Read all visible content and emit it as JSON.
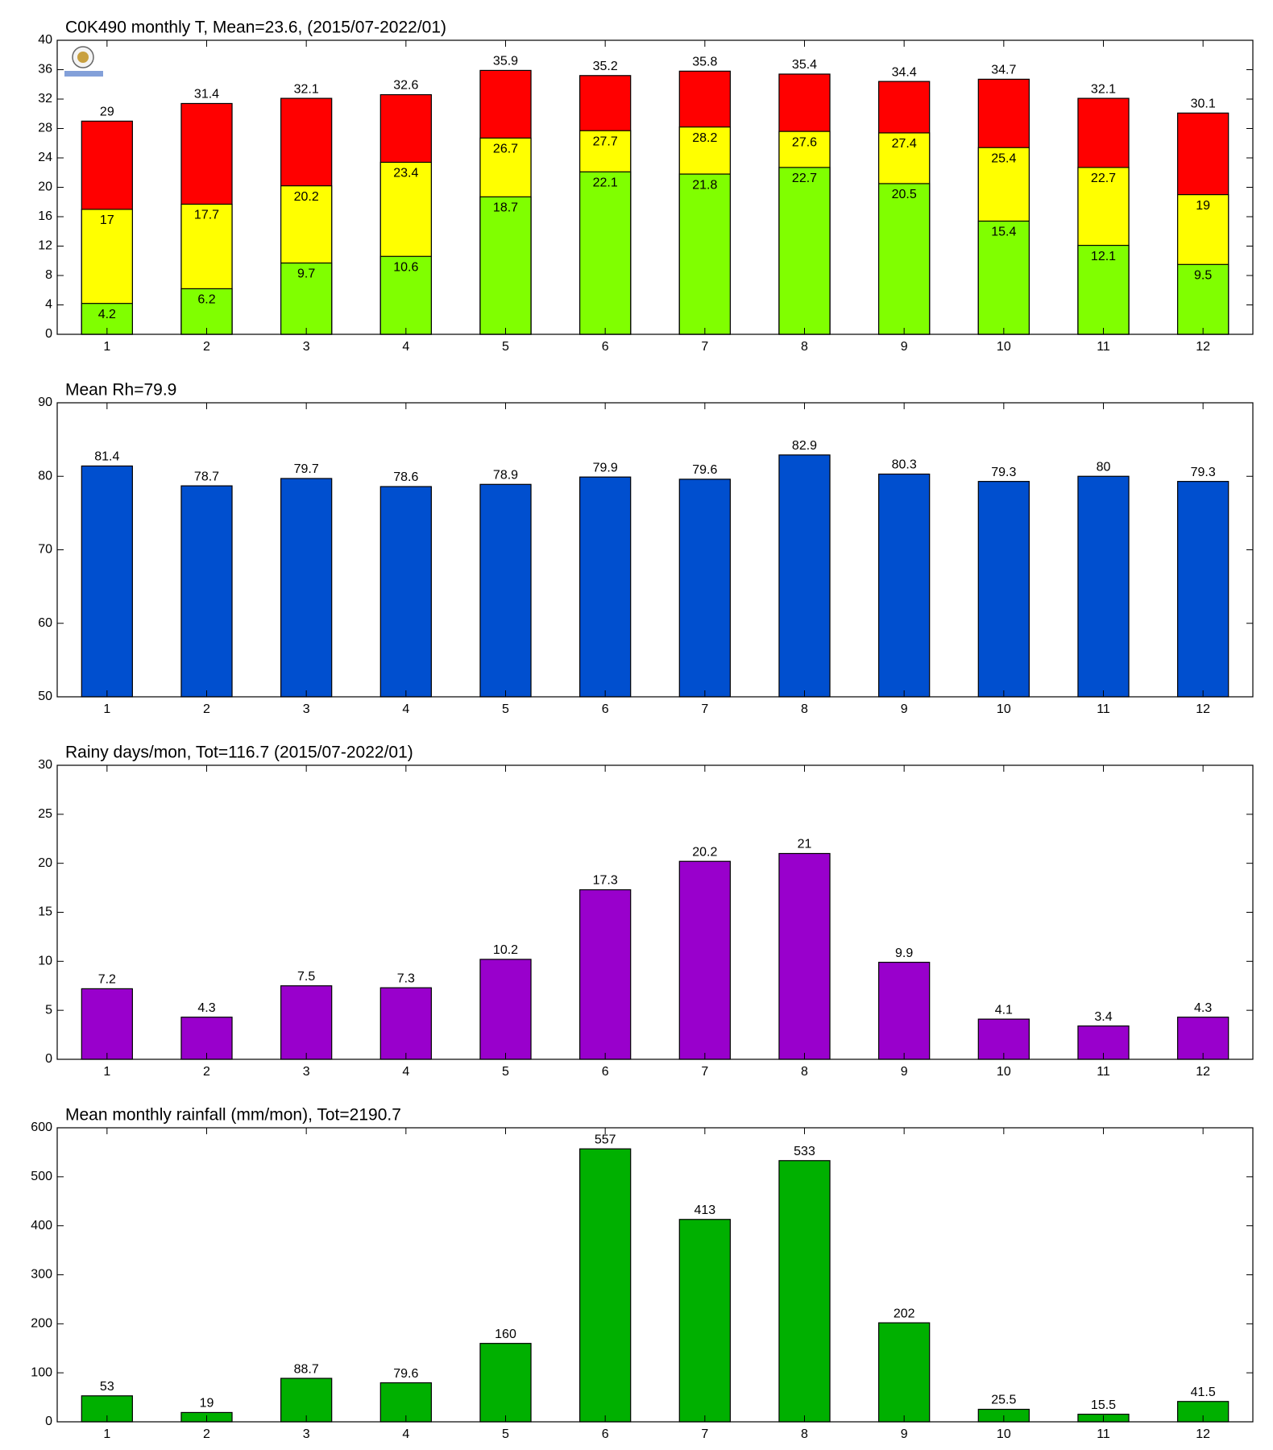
{
  "chart_data": [
    {
      "type": "bar",
      "title": "C0K490 monthly T, Mean=23.6, (2015/07-2022/01)",
      "categories": [
        "1",
        "2",
        "3",
        "4",
        "5",
        "6",
        "7",
        "8",
        "9",
        "10",
        "11",
        "12"
      ],
      "barmode": "overlay",
      "series": [
        {
          "color": "#ff0000",
          "values": [
            29,
            31.4,
            32.1,
            32.6,
            35.9,
            35.2,
            35.8,
            35.4,
            34.4,
            34.7,
            32.1,
            30.1
          ]
        },
        {
          "color": "#ffff00",
          "values": [
            17,
            17.7,
            20.2,
            23.4,
            26.7,
            27.7,
            28.2,
            27.6,
            27.4,
            25.4,
            22.7,
            19
          ]
        },
        {
          "color": "#80ff00",
          "values": [
            4.2,
            6.2,
            9.7,
            10.6,
            18.7,
            22.1,
            21.8,
            22.7,
            20.5,
            15.4,
            12.1,
            9.5
          ]
        }
      ],
      "ylim": [
        0,
        40
      ],
      "yticks": [
        0,
        4,
        8,
        12,
        16,
        20,
        24,
        28,
        32,
        36,
        40
      ]
    },
    {
      "type": "bar",
      "title": "Mean Rh=79.9",
      "categories": [
        "1",
        "2",
        "3",
        "4",
        "5",
        "6",
        "7",
        "8",
        "9",
        "10",
        "11",
        "12"
      ],
      "values": [
        81.4,
        78.7,
        79.7,
        78.6,
        78.9,
        79.9,
        79.6,
        82.9,
        80.3,
        79.3,
        80,
        79.3
      ],
      "color": "#004fcf",
      "ylim": [
        50,
        90
      ],
      "yticks": [
        50,
        60,
        70,
        80,
        90
      ]
    },
    {
      "type": "bar",
      "title": "Rainy days/mon, Tot=116.7 (2015/07-2022/01)",
      "categories": [
        "1",
        "2",
        "3",
        "4",
        "5",
        "6",
        "7",
        "8",
        "9",
        "10",
        "11",
        "12"
      ],
      "values": [
        7.2,
        4.3,
        7.5,
        7.3,
        10.2,
        17.3,
        20.2,
        21,
        9.9,
        4.1,
        3.4,
        4.3
      ],
      "color": "#9900cc",
      "ylim": [
        0,
        30
      ],
      "yticks": [
        0,
        5,
        10,
        15,
        20,
        25,
        30
      ]
    },
    {
      "type": "bar",
      "title": "Mean monthly rainfall (mm/mon), Tot=2190.7",
      "categories": [
        "1",
        "2",
        "3",
        "4",
        "5",
        "6",
        "7",
        "8",
        "9",
        "10",
        "11",
        "12"
      ],
      "values": [
        53,
        19,
        88.7,
        79.6,
        160,
        557,
        413,
        533,
        202,
        25.5,
        15.5,
        41.5
      ],
      "color": "#00b000",
      "ylim": [
        0,
        600
      ],
      "yticks": [
        0,
        100,
        200,
        300,
        400,
        500,
        600
      ]
    }
  ]
}
